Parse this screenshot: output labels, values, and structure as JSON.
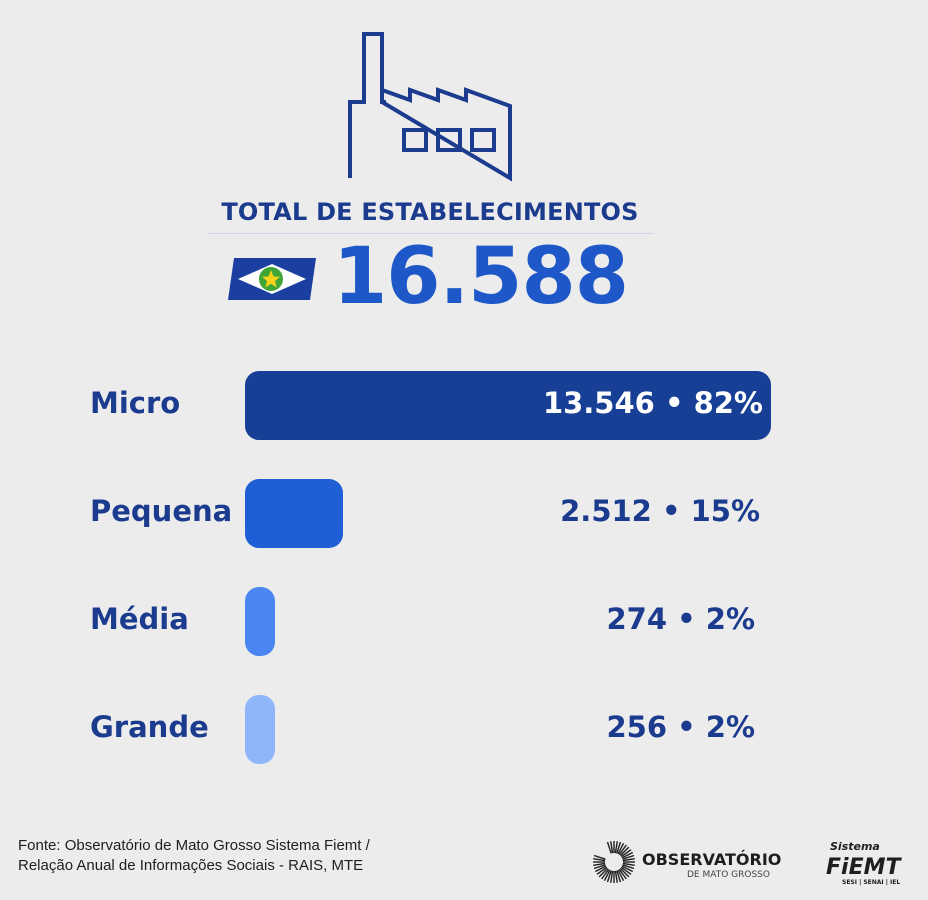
{
  "header": {
    "icon": "factory-icon",
    "title": "TOTAL DE ESTABELECIMENTOS",
    "total": "16.588",
    "flag_icon": "mato-grosso-flag-icon"
  },
  "chart_data": {
    "type": "bar",
    "orientation": "horizontal",
    "categories": [
      "Micro",
      "Pequena",
      "Média",
      "Grande"
    ],
    "values": [
      13546,
      2512,
      274,
      256
    ],
    "percent": [
      82,
      15,
      2,
      2
    ],
    "labels": [
      "13.546 • 82%",
      "2.512 • 15%",
      "274 • 2%",
      "256 • 2%"
    ],
    "colors": [
      "#173f96",
      "#1f5fd6",
      "#4a86f2",
      "#8fb5fb"
    ],
    "grid": false
  },
  "footer": {
    "source_line1": "Fonte: Observatório de Mato Grosso Sistema Fiemt /",
    "source_line2": "Relação Anual de Informações Sociais - RAIS, MTE",
    "logo_observatorio": "OBSERVATÓRIO DE MATO GROSSO",
    "logo_fiemt": "Sistema FIEMT SESI | SENAI | IEL"
  }
}
